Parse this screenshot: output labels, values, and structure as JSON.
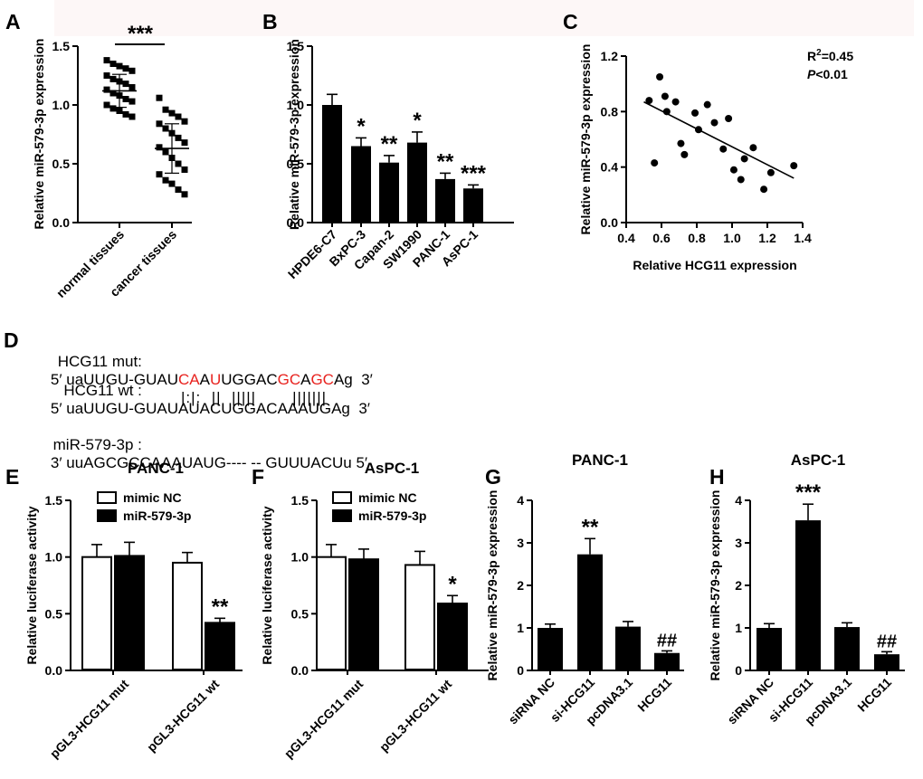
{
  "colors": {
    "black": "#000000",
    "white": "#ffffff",
    "red": "#e8231f"
  },
  "chart_data": [
    {
      "panel": "A",
      "type": "scatter",
      "title": "",
      "ylabel": "Relative miR-579-3p expression",
      "ylim": [
        0,
        1.5
      ],
      "yticks": [
        "0.0",
        "0.5",
        "1.0",
        "1.5"
      ],
      "categories": [
        "normal tissues",
        "cancer tissues"
      ],
      "groups": [
        {
          "name": "normal tissues",
          "mean": 1.12,
          "sd": 0.14,
          "values": [
            1.38,
            1.35,
            1.33,
            1.31,
            1.29,
            1.25,
            1.22,
            1.2,
            1.18,
            1.15,
            1.13,
            1.1,
            1.08,
            1.05,
            1.03,
            1.0,
            0.97,
            0.95,
            0.92,
            0.9
          ]
        },
        {
          "name": "cancer tissues",
          "mean": 0.63,
          "sd": 0.21,
          "values": [
            1.06,
            0.96,
            0.93,
            0.9,
            0.86,
            0.84,
            0.8,
            0.76,
            0.72,
            0.68,
            0.64,
            0.6,
            0.55,
            0.5,
            0.45,
            0.41,
            0.36,
            0.33,
            0.28,
            0.24
          ]
        }
      ],
      "annotation": "***"
    },
    {
      "panel": "B",
      "type": "bar",
      "ylabel": "Relative miR-579-3p expression",
      "ylim": [
        0,
        1.5
      ],
      "yticks": [
        "0.0",
        "0.5",
        "1.0",
        "1.5"
      ],
      "categories": [
        "HPDE6-C7",
        "BxPC-3",
        "Capan-2",
        "SW1990",
        "PANC-1",
        "AsPC-1"
      ],
      "values": [
        1.0,
        0.65,
        0.51,
        0.68,
        0.37,
        0.29
      ],
      "errors": [
        0.09,
        0.07,
        0.06,
        0.09,
        0.05,
        0.03
      ],
      "significance": [
        "",
        "*",
        "**",
        "*",
        "**",
        "***"
      ]
    },
    {
      "panel": "C",
      "type": "scatter",
      "xlabel": "Relative HCG11 expression",
      "ylabel": "Relative miR-579-3p expression",
      "xlim": [
        0.4,
        1.4
      ],
      "ylim": [
        0.0,
        1.2
      ],
      "xticks": [
        "0.4",
        "0.6",
        "0.8",
        "1.0",
        "1.2",
        "1.4"
      ],
      "yticks": [
        "0.0",
        "0.4",
        "0.8",
        "1.2"
      ],
      "x": [
        0.53,
        0.56,
        0.59,
        0.62,
        0.63,
        0.68,
        0.71,
        0.73,
        0.79,
        0.81,
        0.86,
        0.9,
        0.95,
        0.98,
        1.01,
        1.05,
        1.07,
        1.12,
        1.18,
        1.22,
        1.35
      ],
      "y": [
        0.88,
        0.43,
        1.05,
        0.91,
        0.8,
        0.87,
        0.57,
        0.49,
        0.79,
        0.67,
        0.85,
        0.72,
        0.53,
        0.75,
        0.38,
        0.31,
        0.46,
        0.54,
        0.24,
        0.36,
        0.41
      ],
      "fit": {
        "x1": 0.5,
        "y1": 0.87,
        "x2": 1.35,
        "y2": 0.32
      },
      "r2_label": "R",
      "r2_sup": "2",
      "r2_value": "=0.45",
      "p_label": "P",
      "p_value": "<0.01"
    },
    {
      "panel": "E",
      "type": "bar",
      "title": "PANC-1",
      "ylabel": "Relative luciferase activity",
      "ylim": [
        0,
        1.5
      ],
      "yticks": [
        "0.0",
        "0.5",
        "1.0",
        "1.5"
      ],
      "categories": [
        "pGL3-HCG11 mut",
        "pGL3-HCG11 wt"
      ],
      "series": [
        {
          "name": "mimic NC",
          "values": [
            1.0,
            0.95
          ],
          "errors": [
            0.11,
            0.09
          ]
        },
        {
          "name": "miR-579-3p",
          "values": [
            1.01,
            0.42
          ],
          "errors": [
            0.12,
            0.04
          ]
        }
      ],
      "significance": [
        "",
        "",
        "",
        "**"
      ]
    },
    {
      "panel": "F",
      "type": "bar",
      "title": "AsPC-1",
      "ylabel": "Relative luciferase activity",
      "ylim": [
        0,
        1.5
      ],
      "yticks": [
        "0.0",
        "0.5",
        "1.0",
        "1.5"
      ],
      "categories": [
        "pGL3-HCG11 mut",
        "pGL3-HCG11 wt"
      ],
      "series": [
        {
          "name": "mimic NC",
          "values": [
            1.0,
            0.93
          ],
          "errors": [
            0.11,
            0.12
          ]
        },
        {
          "name": "miR-579-3p",
          "values": [
            0.98,
            0.59
          ],
          "errors": [
            0.09,
            0.07
          ]
        }
      ],
      "significance": [
        "",
        "",
        "",
        "*"
      ]
    },
    {
      "panel": "G",
      "type": "bar",
      "title": "PANC-1",
      "ylabel": "Relative miR-579-3p expression",
      "ylim": [
        0,
        4
      ],
      "yticks": [
        "0",
        "1",
        "2",
        "3",
        "4"
      ],
      "categories": [
        "siRNA NC",
        "si-HCG11",
        "pcDNA3.1",
        "HCG11"
      ],
      "values": [
        1.0,
        2.73,
        1.03,
        0.41
      ],
      "errors": [
        0.09,
        0.37,
        0.12,
        0.05
      ],
      "significance": [
        "",
        "**",
        "",
        "##"
      ]
    },
    {
      "panel": "H",
      "type": "bar",
      "title": "AsPC-1",
      "ylabel": "Relative miR-579-3p expression",
      "ylim": [
        0,
        4
      ],
      "yticks": [
        "0",
        "1",
        "2",
        "3",
        "4"
      ],
      "categories": [
        "siRNA NC",
        "si-HCG11",
        "pcDNA3.1",
        "HCG11"
      ],
      "values": [
        1.0,
        3.53,
        1.02,
        0.38
      ],
      "errors": [
        0.1,
        0.38,
        0.1,
        0.06
      ],
      "significance": [
        "",
        "***",
        "",
        "##"
      ]
    }
  ],
  "panel_letters": [
    "A",
    "B",
    "C",
    "D",
    "E",
    "F",
    "G",
    "H"
  ],
  "sequence": {
    "mut_label": "HCG11 mut:",
    "mut_seq": [
      "5′ uaUUGU-GUAU",
      "CA",
      "A",
      "U",
      "UGGAC",
      "GC",
      "A",
      "GC",
      "Ag  3′"
    ],
    "wt_label": "HCG11 wt :",
    "wt_seq": "5′ uaUUGU-GUAUAUACUGGACAAAUGAg  3′",
    "pairs": "|:|:  ||  |||||       |||||||",
    "mir_label": "miR-579-3p :",
    "mir_seq": "3′ uuAGCGCCAAAUAUG---- -- GUUUACUu 5′"
  }
}
